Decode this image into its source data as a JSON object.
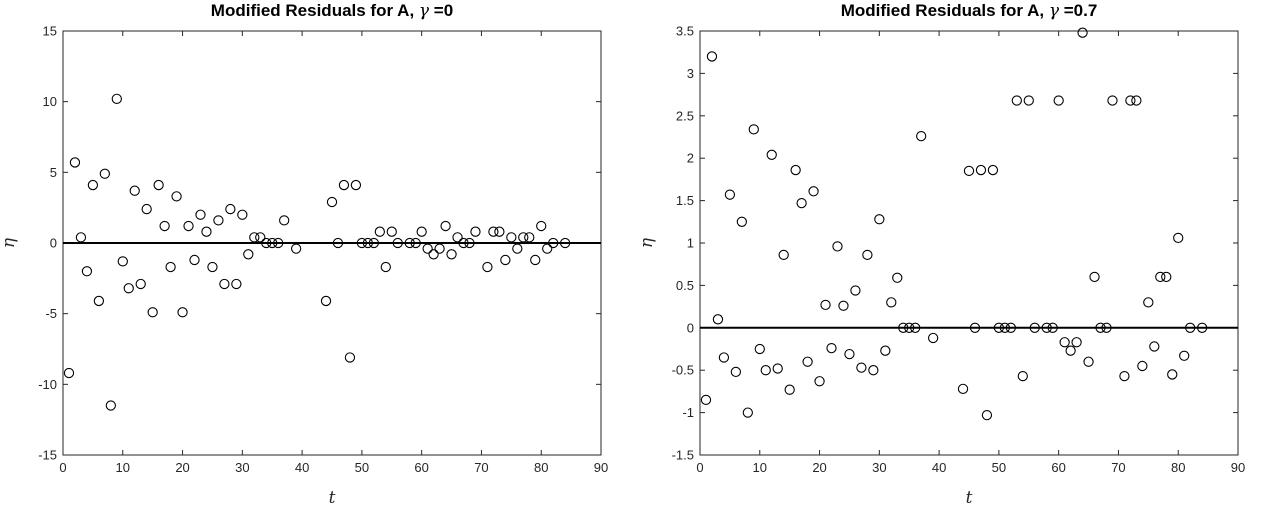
{
  "chart_data": [
    {
      "type": "scatter",
      "title_main": "Modified Residuals for A, ",
      "title_symbol": "γ",
      "title_value": " =0",
      "xlabel": "t",
      "ylabel": "η",
      "xlim": [
        0,
        90
      ],
      "ylim": [
        -15,
        15
      ],
      "xticks": [
        "0",
        "10",
        "20",
        "30",
        "40",
        "50",
        "60",
        "70",
        "80",
        "90"
      ],
      "yticks": [
        "-15",
        "-10",
        "-5",
        "0",
        "5",
        "10",
        "15"
      ],
      "reference_line_y": 0,
      "marker": "open-circle",
      "points": [
        [
          1,
          -9.2
        ],
        [
          2,
          5.7
        ],
        [
          3,
          0.4
        ],
        [
          4,
          -2.0
        ],
        [
          5,
          4.1
        ],
        [
          6,
          -4.1
        ],
        [
          7,
          4.9
        ],
        [
          8,
          -11.5
        ],
        [
          9,
          10.2
        ],
        [
          10,
          -1.3
        ],
        [
          11,
          -3.2
        ],
        [
          12,
          3.7
        ],
        [
          13,
          -2.9
        ],
        [
          14,
          2.4
        ],
        [
          15,
          -4.9
        ],
        [
          16,
          4.1
        ],
        [
          17,
          1.2
        ],
        [
          18,
          -1.7
        ],
        [
          19,
          3.3
        ],
        [
          20,
          -4.9
        ],
        [
          21,
          1.2
        ],
        [
          22,
          -1.2
        ],
        [
          23,
          2.0
        ],
        [
          24,
          0.8
        ],
        [
          25,
          -1.7
        ],
        [
          26,
          1.6
        ],
        [
          27,
          -2.9
        ],
        [
          28,
          2.4
        ],
        [
          29,
          -2.9
        ],
        [
          30,
          2.0
        ],
        [
          31,
          -0.8
        ],
        [
          32,
          0.4
        ],
        [
          33,
          0.4
        ],
        [
          34,
          0.0
        ],
        [
          35,
          0.0
        ],
        [
          36,
          0.0
        ],
        [
          37,
          1.6
        ],
        [
          39,
          -0.4
        ],
        [
          44,
          -4.1
        ],
        [
          45,
          2.9
        ],
        [
          46,
          0.0
        ],
        [
          47,
          4.1
        ],
        [
          48,
          -8.1
        ],
        [
          49,
          4.1
        ],
        [
          50,
          0.0
        ],
        [
          51,
          0.0
        ],
        [
          52,
          0.0
        ],
        [
          53,
          0.8
        ],
        [
          54,
          -1.7
        ],
        [
          55,
          0.8
        ],
        [
          56,
          0.0
        ],
        [
          58,
          0.0
        ],
        [
          59,
          0.0
        ],
        [
          60,
          0.8
        ],
        [
          61,
          -0.4
        ],
        [
          62,
          -0.8
        ],
        [
          63,
          -0.4
        ],
        [
          64,
          1.2
        ],
        [
          65,
          -0.8
        ],
        [
          66,
          0.4
        ],
        [
          67,
          0.0
        ],
        [
          68,
          0.0
        ],
        [
          69,
          0.8
        ],
        [
          71,
          -1.7
        ],
        [
          72,
          0.8
        ],
        [
          73,
          0.8
        ],
        [
          74,
          -1.2
        ],
        [
          75,
          0.4
        ],
        [
          76,
          -0.4
        ],
        [
          77,
          0.4
        ],
        [
          78,
          0.4
        ],
        [
          79,
          -1.2
        ],
        [
          80,
          1.2
        ],
        [
          81,
          -0.4
        ],
        [
          82,
          0.0
        ],
        [
          84,
          0.0
        ]
      ]
    },
    {
      "type": "scatter",
      "title_main": "Modified Residuals for A, ",
      "title_symbol": "γ",
      "title_value": " =0.7",
      "xlabel": "t",
      "ylabel": "η",
      "xlim": [
        0,
        90
      ],
      "ylim": [
        -1.5,
        3.5
      ],
      "xticks": [
        "0",
        "10",
        "20",
        "30",
        "40",
        "50",
        "60",
        "70",
        "80",
        "90"
      ],
      "yticks": [
        "-1.5",
        "-1",
        "-0.5",
        "0",
        "0.5",
        "1",
        "1.5",
        "2",
        "2.5",
        "3",
        "3.5"
      ],
      "reference_line_y": 0,
      "marker": "open-circle",
      "points": [
        [
          1,
          -0.85
        ],
        [
          2,
          3.2
        ],
        [
          3,
          0.1
        ],
        [
          4,
          -0.35
        ],
        [
          5,
          1.57
        ],
        [
          6,
          -0.52
        ],
        [
          7,
          1.25
        ],
        [
          8,
          -1.0
        ],
        [
          9,
          2.34
        ],
        [
          10,
          -0.25
        ],
        [
          11,
          -0.5
        ],
        [
          12,
          2.04
        ],
        [
          13,
          -0.48
        ],
        [
          14,
          0.86
        ],
        [
          15,
          -0.73
        ],
        [
          16,
          1.86
        ],
        [
          17,
          1.47
        ],
        [
          18,
          -0.4
        ],
        [
          19,
          1.61
        ],
        [
          20,
          -0.63
        ],
        [
          21,
          0.27
        ],
        [
          22,
          -0.24
        ],
        [
          23,
          0.96
        ],
        [
          24,
          0.26
        ],
        [
          25,
          -0.31
        ],
        [
          26,
          0.44
        ],
        [
          27,
          -0.47
        ],
        [
          28,
          0.86
        ],
        [
          29,
          -0.5
        ],
        [
          30,
          1.28
        ],
        [
          31,
          -0.27
        ],
        [
          32,
          0.3
        ],
        [
          33,
          0.59
        ],
        [
          34,
          0.0
        ],
        [
          35,
          0.0
        ],
        [
          36,
          0.0
        ],
        [
          37,
          2.26
        ],
        [
          39,
          -0.12
        ],
        [
          44,
          -0.72
        ],
        [
          45,
          1.85
        ],
        [
          46,
          0.0
        ],
        [
          47,
          1.86
        ],
        [
          48,
          -1.03
        ],
        [
          49,
          1.86
        ],
        [
          50,
          0.0
        ],
        [
          51,
          0.0
        ],
        [
          52,
          0.0
        ],
        [
          53,
          2.68
        ],
        [
          54,
          -0.57
        ],
        [
          55,
          2.68
        ],
        [
          56,
          0.0
        ],
        [
          58,
          0.0
        ],
        [
          59,
          0.0
        ],
        [
          60,
          2.68
        ],
        [
          61,
          -0.17
        ],
        [
          62,
          -0.27
        ],
        [
          63,
          -0.17
        ],
        [
          64,
          3.48
        ],
        [
          65,
          -0.4
        ],
        [
          66,
          0.6
        ],
        [
          67,
          0.0
        ],
        [
          68,
          0.0
        ],
        [
          69,
          2.68
        ],
        [
          71,
          -0.57
        ],
        [
          72,
          2.68
        ],
        [
          73,
          2.68
        ],
        [
          74,
          -0.45
        ],
        [
          75,
          0.3
        ],
        [
          76,
          -0.22
        ],
        [
          77,
          0.6
        ],
        [
          78,
          0.6
        ],
        [
          79,
          -0.55
        ],
        [
          80,
          1.06
        ],
        [
          81,
          -0.33
        ],
        [
          82,
          0.0
        ],
        [
          84,
          0.0
        ]
      ]
    }
  ]
}
